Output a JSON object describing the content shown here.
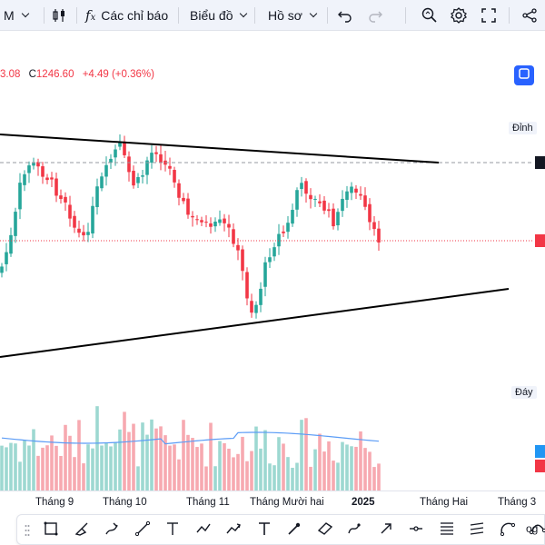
{
  "toolbar": {
    "interval": "M",
    "indicators_label": "Các chỉ báo",
    "chart_label": "Biểu đồ",
    "profile_label": "Hồ sơ"
  },
  "legend": {
    "open_fragment": "3.08",
    "close_prefix": "C",
    "close_value": "1246.60",
    "change": "+4.49 (+0.36%)"
  },
  "axis_tags": {
    "top": "Đỉnh",
    "bottom": "Đáy"
  },
  "colors": {
    "up": "#26a69a",
    "down": "#f23645",
    "accent": "#2962ff",
    "trendline": "#000000"
  },
  "time_axis": {
    "labels": [
      "Tháng 9",
      "Tháng 10",
      "Tháng 11",
      "Tháng Mười hai",
      "2025",
      "Tháng Hai",
      "Tháng 3"
    ]
  },
  "drawing_tools": {
    "tail_text": "og",
    "icons": [
      "rectangle-icon",
      "brush-icon",
      "highlighter-icon",
      "trend-line-icon",
      "vertical-line-icon",
      "path-icon",
      "arrow-path-icon",
      "text-icon",
      "arrow-marker-icon",
      "parallel-channel-icon",
      "brush-curve-icon",
      "arrow-icon",
      "horizontal-ray-icon",
      "fib-levels-icon",
      "regression-icon",
      "arc-icon",
      "curve-icon"
    ]
  }
}
